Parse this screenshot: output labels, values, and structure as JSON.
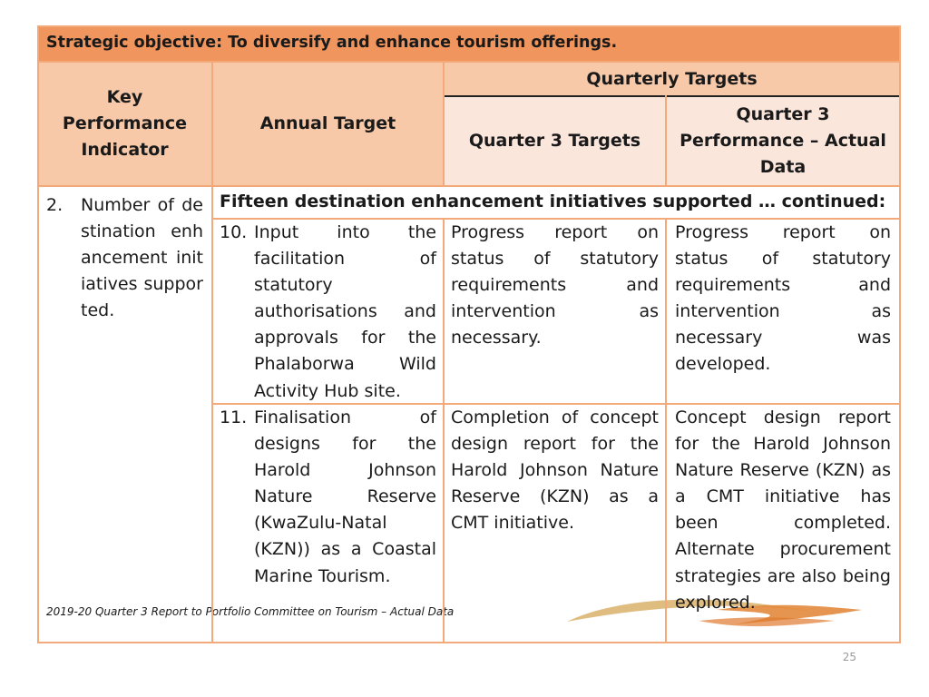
{
  "title": "Strategic objective: To diversify and enhance tourism offerings.",
  "headers": {
    "kpi": "Key Performance Indicator",
    "annual_target": "Annual Target",
    "quarterly_targets": "Quarterly Targets",
    "q3_targets": "Quarter 3 Targets",
    "q3_performance": "Quarter 3 Performance – Actual Data"
  },
  "kpi": {
    "number": "2.",
    "text": "Number of destination enhancement initiatives supported."
  },
  "continued": "Fifteen destination enhancement initiatives supported … continued:",
  "rows": [
    {
      "number": "10.",
      "target": "Input into the facilitation of statutory authorisations and approvals for the Phalaborwa Wild Activity Hub site.",
      "q3_target": "Progress report on status of statutory requirements and intervention as necessary.",
      "q3_actual": "Progress report on status of statutory requirements and intervention as necessary was developed."
    },
    {
      "number": "11.",
      "target": "Finalisation of designs for the Harold Johnson Nature Reserve (KwaZulu-Natal (KZN)) as a Coastal Marine Tourism.",
      "q3_target": "Completion of concept design report for the Harold Johnson Nature Reserve (KZN) as a CMT initiative.",
      "q3_actual": "Concept design report for the Harold Johnson Nature Reserve (KZN) as a CMT initiative has been completed. Alternate procurement strategies are also being explored."
    }
  ],
  "footer": "2019-20 Quarter 3 Report to Portfolio Committee on Tourism – Actual Data",
  "page_number": "25",
  "colors": {
    "title_bg": "#f0955e",
    "header_bg": "#f8c9a8",
    "header_light_bg": "#fbe6dc",
    "border": "#f4a97a",
    "logo_swoosh": "#e2a24a"
  }
}
